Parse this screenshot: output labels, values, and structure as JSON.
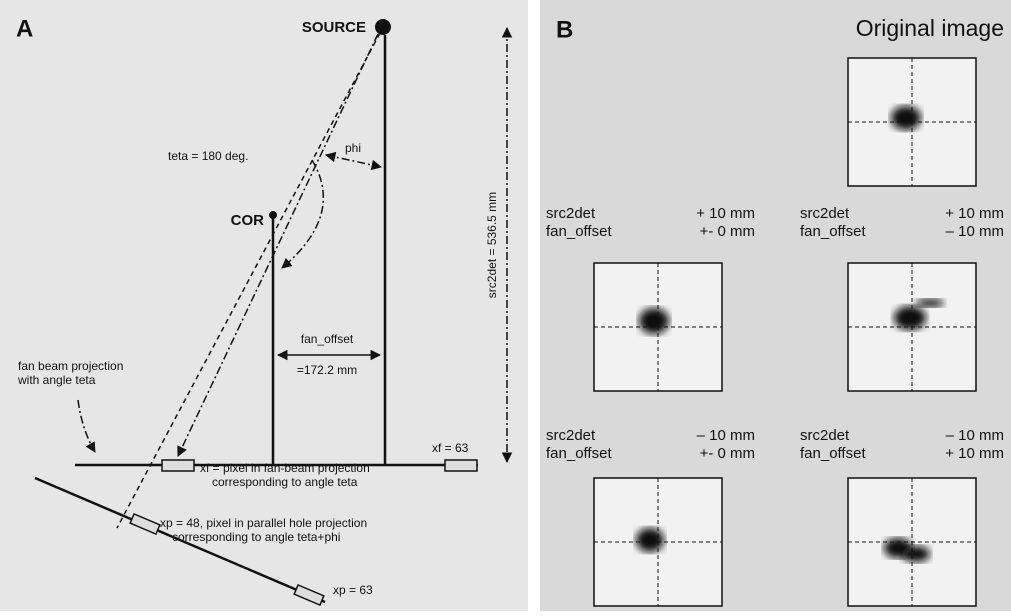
{
  "panel_a": {
    "label": "A",
    "source": "SOURCE",
    "src2det": "src2det = 536.5 mm",
    "phi": "phi",
    "teta": "teta = 180 deg.",
    "cor": "COR",
    "fan_offset": "fan_offset",
    "fan_offset_value": "=172.2 mm",
    "fan_beam": [
      "fan beam projection",
      "with angle teta"
    ],
    "xf_end": "xf = 63",
    "xf_note": [
      "xf = pixel in fan-beam projection",
      "corresponding to angle teta"
    ],
    "xp_note": [
      "xp = 48, pixel in parallel hole projection",
      "corresponding to angle teta+phi"
    ],
    "xp_end": "xp = 63"
  },
  "panel_b": {
    "label": "B",
    "title": "Original image",
    "captions": [
      {
        "rows": [
          [
            "src2det",
            "+ 10 mm"
          ],
          [
            "fan_offset",
            "+- 0 mm"
          ]
        ]
      },
      {
        "rows": [
          [
            "src2det",
            "+ 10 mm"
          ],
          [
            "fan_offset",
            "– 10 mm"
          ]
        ]
      },
      {
        "rows": [
          [
            "src2det",
            "– 10 mm"
          ],
          [
            "fan_offset",
            "+- 0 mm"
          ]
        ]
      },
      {
        "rows": [
          [
            "src2det",
            "– 10 mm"
          ],
          [
            "fan_offset",
            "+ 10 mm"
          ]
        ]
      }
    ]
  }
}
